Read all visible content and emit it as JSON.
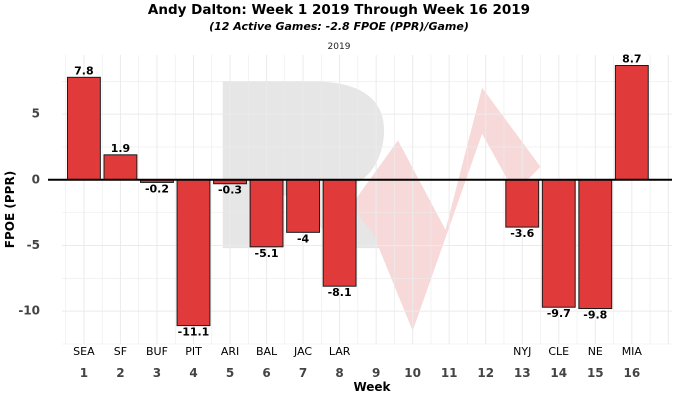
{
  "chart_data": {
    "type": "bar",
    "title": "Andy Dalton: Week 1 2019 Through Week 16 2019",
    "subtitle": "(12 Active Games: -2.8 FPOE (PPR)/Game)",
    "caption": "2019",
    "xlabel": "Week",
    "ylabel": "FPOE (PPR)",
    "x": [
      1,
      2,
      3,
      4,
      5,
      6,
      7,
      8,
      9,
      10,
      11,
      12,
      13,
      14,
      15,
      16
    ],
    "teams": [
      "SEA",
      "SF",
      "BUF",
      "PIT",
      "ARI",
      "BAL",
      "JAC",
      "LAR",
      "",
      "",
      "",
      "",
      "NYJ",
      "CLE",
      "NE",
      "MIA"
    ],
    "values": [
      7.8,
      1.9,
      -0.2,
      -11.1,
      -0.3,
      -5.1,
      -4,
      -8.1,
      null,
      null,
      null,
      null,
      -3.6,
      -9.7,
      -9.8,
      8.7
    ],
    "value_labels": [
      "7.8",
      "1.9",
      "-0.2",
      "-11.1",
      "-0.3",
      "-5.1",
      "-4",
      "-8.1",
      "",
      "",
      "",
      "",
      "-3.6",
      "-9.7",
      "-9.8",
      "8.7"
    ],
    "yticks": [
      5,
      0,
      -5,
      -10
    ],
    "ylim": [
      -12.5,
      9.5
    ],
    "xlim": [
      0.4,
      17.1
    ],
    "grid": true,
    "colors": {
      "bar_fill": "#e03a3a",
      "bar_stroke": "#1a1a1a",
      "grid": "#ebebeb",
      "zero_line": "#000000",
      "watermark": "#e6e6e6",
      "watermark_accent": "#f8d9d9"
    }
  }
}
